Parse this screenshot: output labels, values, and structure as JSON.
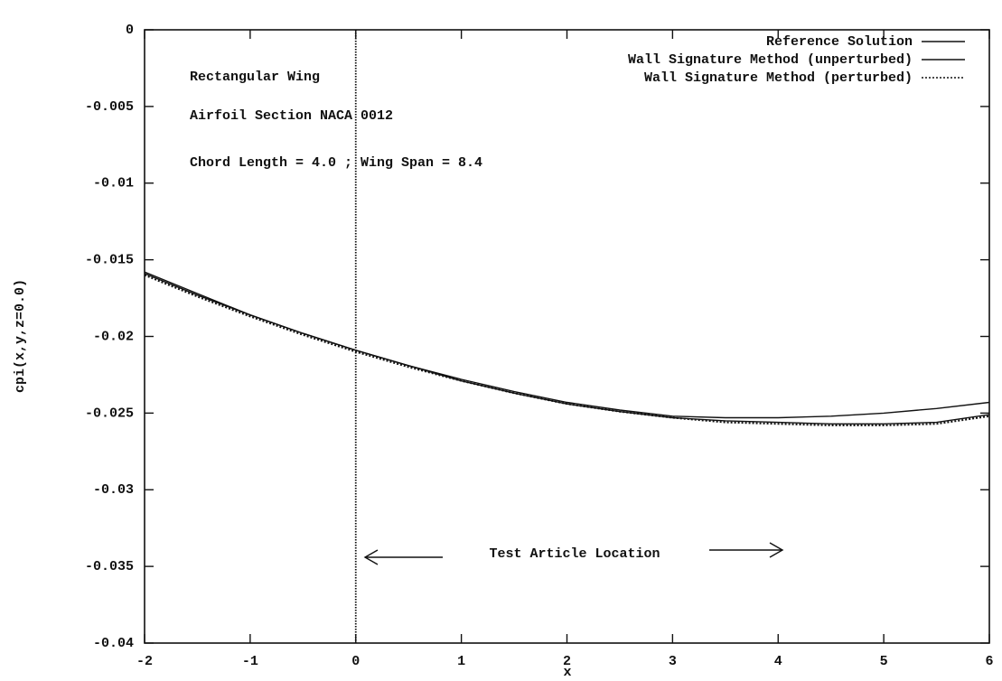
{
  "chart_data": {
    "type": "line",
    "xlabel": "x",
    "ylabel": "cpi(x,y,z=0.0)",
    "annotations": [
      "Rectangular Wing",
      "Airfoil Section NACA 0012",
      "Chord Length = 4.0 ; Wing Span = 8.4",
      "Test Article Location"
    ],
    "vline": 0,
    "x": [
      -2,
      -1.5,
      -1,
      -0.5,
      0,
      0.5,
      1,
      1.5,
      2,
      2.5,
      3,
      3.5,
      4,
      4.5,
      5,
      5.5,
      6
    ],
    "series": [
      {
        "name": "Reference Solution",
        "color": "#111111",
        "style": "solid",
        "values": [
          -0.0158,
          -0.0172,
          -0.0186,
          -0.0198,
          -0.0209,
          -0.0219,
          -0.0228,
          -0.0236,
          -0.0243,
          -0.0248,
          -0.0252,
          -0.0253,
          -0.0253,
          -0.0252,
          -0.025,
          -0.0247,
          -0.0243
        ]
      },
      {
        "name": "Wall Signature Method (unperturbed)",
        "color": "#111111",
        "style": "solid",
        "values": [
          -0.0159,
          -0.0173,
          -0.0186,
          -0.0198,
          -0.0209,
          -0.0219,
          -0.0229,
          -0.0237,
          -0.0244,
          -0.0249,
          -0.0253,
          -0.0255,
          -0.0256,
          -0.0257,
          -0.0257,
          -0.0256,
          -0.0251
        ]
      },
      {
        "name": "Wall Signature Method (perturbed)",
        "color": "#111111",
        "style": "dotted",
        "values": [
          -0.016,
          -0.0174,
          -0.0187,
          -0.0199,
          -0.021,
          -0.022,
          -0.0229,
          -0.0237,
          -0.0244,
          -0.0249,
          -0.0253,
          -0.0256,
          -0.0257,
          -0.0258,
          -0.0258,
          -0.0257,
          -0.0252
        ]
      }
    ],
    "xlim": [
      -2,
      6
    ],
    "xticks": [
      -2,
      -1,
      0,
      1,
      2,
      3,
      4,
      5,
      6
    ],
    "ylim": [
      -0.04,
      0
    ],
    "yticks": [
      0,
      -0.005,
      -0.01,
      -0.015,
      -0.02,
      -0.025,
      -0.03,
      -0.035,
      -0.04
    ],
    "grid": false,
    "legend": "upper right"
  }
}
